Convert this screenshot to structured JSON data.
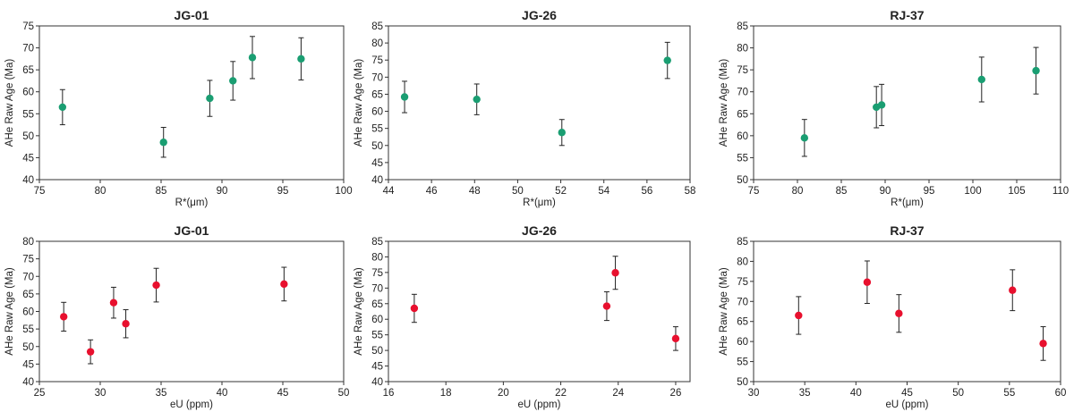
{
  "chart_data": [
    {
      "type": "scatter",
      "title": "JG-01",
      "xlabel": "R*(μm)",
      "ylabel": "AHe Raw Age (Ma)",
      "xlim": [
        75,
        100
      ],
      "ylim": [
        40,
        75
      ],
      "xticks": [
        75,
        80,
        85,
        90,
        95,
        100
      ],
      "yticks": [
        40,
        45,
        50,
        55,
        60,
        65,
        70,
        75
      ],
      "color": "#1a9e72",
      "grid": false,
      "points": [
        {
          "x": 76.9,
          "y": 56.5,
          "err": 4.0
        },
        {
          "x": 85.2,
          "y": 48.5,
          "err": 3.4
        },
        {
          "x": 89.0,
          "y": 58.5,
          "err": 4.1
        },
        {
          "x": 90.9,
          "y": 62.5,
          "err": 4.4
        },
        {
          "x": 92.5,
          "y": 67.8,
          "err": 4.8
        },
        {
          "x": 96.5,
          "y": 67.5,
          "err": 4.8
        }
      ]
    },
    {
      "type": "scatter",
      "title": "JG-26",
      "xlabel": "R*(μm)",
      "ylabel": "AHe Raw Age (Ma)",
      "xlim": [
        44,
        58
      ],
      "ylim": [
        40,
        85
      ],
      "xticks": [
        44,
        46,
        48,
        50,
        52,
        54,
        56,
        58
      ],
      "yticks": [
        40,
        45,
        50,
        55,
        60,
        65,
        70,
        75,
        80,
        85
      ],
      "color": "#1a9e72",
      "grid": false,
      "points": [
        {
          "x": 44.75,
          "y": 64.2,
          "err": 4.6
        },
        {
          "x": 48.1,
          "y": 63.5,
          "err": 4.5
        },
        {
          "x": 52.05,
          "y": 53.8,
          "err": 3.8
        },
        {
          "x": 56.95,
          "y": 74.9,
          "err": 5.3
        }
      ]
    },
    {
      "type": "scatter",
      "title": "RJ-37",
      "xlabel": "R*(μm)",
      "ylabel": "AHe Raw Age (Ma)",
      "xlim": [
        75,
        110
      ],
      "ylim": [
        50,
        85
      ],
      "xticks": [
        75,
        80,
        85,
        90,
        95,
        100,
        105,
        110
      ],
      "yticks": [
        50,
        55,
        60,
        65,
        70,
        75,
        80,
        85
      ],
      "color": "#1a9e72",
      "grid": false,
      "points": [
        {
          "x": 80.8,
          "y": 59.5,
          "err": 4.2
        },
        {
          "x": 89.0,
          "y": 66.5,
          "err": 4.7
        },
        {
          "x": 89.6,
          "y": 67.0,
          "err": 4.7
        },
        {
          "x": 101.0,
          "y": 72.8,
          "err": 5.1
        },
        {
          "x": 107.2,
          "y": 74.8,
          "err": 5.3
        }
      ]
    },
    {
      "type": "scatter",
      "title": "JG-01",
      "xlabel": "eU (ppm)",
      "ylabel": "AHe Raw Age (Ma)",
      "xlim": [
        25,
        50
      ],
      "ylim": [
        40,
        80
      ],
      "xticks": [
        25,
        30,
        35,
        40,
        45,
        50
      ],
      "yticks": [
        40,
        45,
        50,
        55,
        60,
        65,
        70,
        75,
        80
      ],
      "color": "#e8102e",
      "grid": false,
      "points": [
        {
          "x": 27.0,
          "y": 58.5,
          "err": 4.1
        },
        {
          "x": 29.2,
          "y": 48.5,
          "err": 3.4
        },
        {
          "x": 31.1,
          "y": 62.5,
          "err": 4.4
        },
        {
          "x": 32.1,
          "y": 56.5,
          "err": 4.0
        },
        {
          "x": 34.6,
          "y": 67.5,
          "err": 4.8
        },
        {
          "x": 45.1,
          "y": 67.8,
          "err": 4.8
        }
      ]
    },
    {
      "type": "scatter",
      "title": "JG-26",
      "xlabel": "eU (ppm)",
      "ylabel": "AHe Raw Age (Ma)",
      "xlim": [
        16,
        26.5
      ],
      "ylim": [
        40,
        85
      ],
      "xticks": [
        16,
        18,
        20,
        22,
        24,
        26
      ],
      "yticks": [
        40,
        45,
        50,
        55,
        60,
        65,
        70,
        75,
        80,
        85
      ],
      "color": "#e8102e",
      "grid": false,
      "points": [
        {
          "x": 16.9,
          "y": 63.5,
          "err": 4.5
        },
        {
          "x": 23.6,
          "y": 64.2,
          "err": 4.6
        },
        {
          "x": 23.9,
          "y": 74.9,
          "err": 5.3
        },
        {
          "x": 26.0,
          "y": 53.8,
          "err": 3.8
        }
      ]
    },
    {
      "type": "scatter",
      "title": "RJ-37",
      "xlabel": "eU (ppm)",
      "ylabel": "AHe Raw Age (Ma)",
      "xlim": [
        30,
        60
      ],
      "ylim": [
        50,
        85
      ],
      "xticks": [
        30,
        35,
        40,
        45,
        50,
        55,
        60
      ],
      "yticks": [
        50,
        55,
        60,
        65,
        70,
        75,
        80,
        85
      ],
      "color": "#e8102e",
      "grid": false,
      "points": [
        {
          "x": 34.4,
          "y": 66.5,
          "err": 4.7
        },
        {
          "x": 41.1,
          "y": 74.8,
          "err": 5.3
        },
        {
          "x": 44.2,
          "y": 67.0,
          "err": 4.7
        },
        {
          "x": 55.3,
          "y": 72.8,
          "err": 5.1
        },
        {
          "x": 58.3,
          "y": 59.5,
          "err": 4.2
        }
      ]
    }
  ]
}
